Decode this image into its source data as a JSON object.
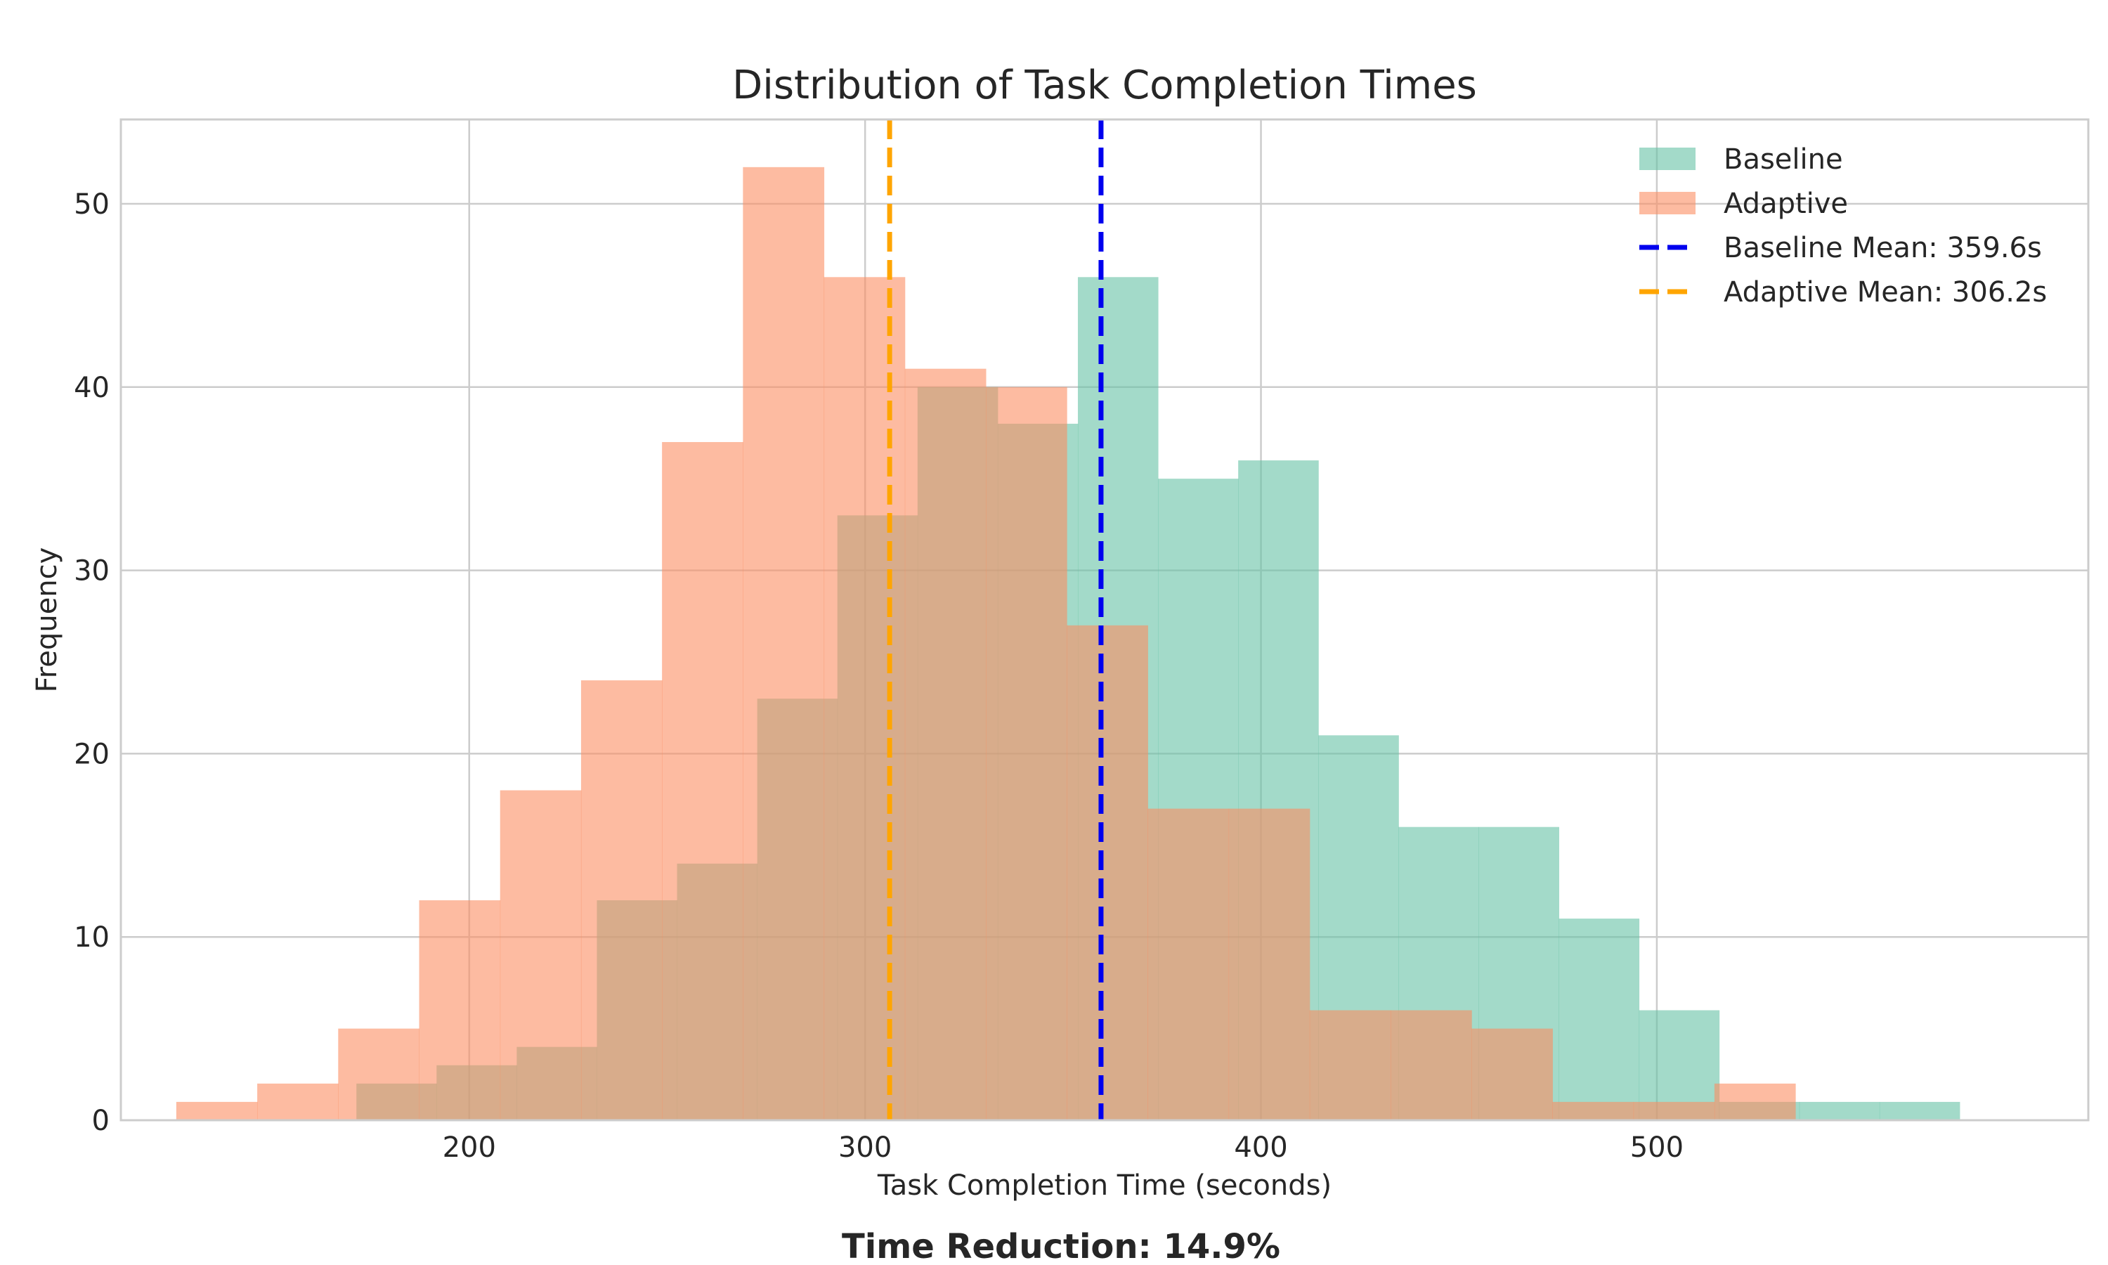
{
  "chart_data": {
    "type": "bar",
    "title": "Distribution of Task Completion Times",
    "xlabel": "Task Completion Time (seconds)",
    "ylabel": "Frequency",
    "xlim": [
      112,
      609
    ],
    "ylim": [
      0,
      54.6
    ],
    "xticks": [
      200,
      300,
      400,
      500
    ],
    "yticks": [
      0,
      10,
      20,
      30,
      40,
      50
    ],
    "grid": true,
    "legend_position": "top-right",
    "footer": "Time Reduction: 14.9%",
    "series": [
      {
        "name": "Baseline",
        "color": "#66c2a5",
        "opacity": 0.6,
        "bin_start": 171.5,
        "bin_width": 20.25,
        "counts": [
          2,
          3,
          4,
          12,
          14,
          23,
          33,
          40,
          38,
          46,
          35,
          36,
          21,
          16,
          16,
          11,
          6,
          1,
          1,
          1
        ]
      },
      {
        "name": "Adaptive",
        "color": "#fc8d62",
        "opacity": 0.6,
        "bin_start": 126.0,
        "bin_width": 20.45,
        "counts": [
          1,
          2,
          5,
          12,
          18,
          24,
          37,
          52,
          46,
          41,
          40,
          27,
          17,
          17,
          6,
          6,
          5,
          1,
          1,
          2
        ]
      }
    ],
    "mean_lines": [
      {
        "name": "Baseline Mean: 359.6s",
        "value": 359.6,
        "color": "#0000ee"
      },
      {
        "name": "Adaptive Mean: 306.2s",
        "value": 306.2,
        "color": "#ffa500"
      }
    ]
  }
}
